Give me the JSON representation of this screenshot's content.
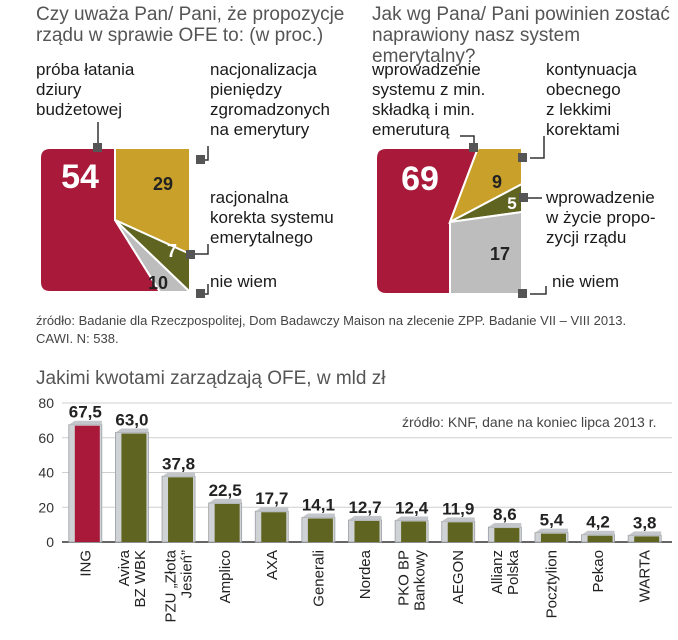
{
  "colors": {
    "red": "#a8193a",
    "gold": "#c9a12a",
    "olive": "#5f6520",
    "gray": "#bdbdbd",
    "bar_face": "#d0d3d6",
    "bar_top": "#c3c6ca"
  },
  "chart_data": [
    {
      "type": "pie",
      "title": "Czy uważa Pan/ Pani, że propozycje rządu w sprawie OFE to: (w proc.)",
      "slices": [
        {
          "label": "próba łatania dziury budżetowej",
          "value": 54
        },
        {
          "label": "nacjonalizacja pieniędzy zgromadzonych na emerytury",
          "value": 29
        },
        {
          "label": "racjonalna korekta systemu emerytalnego",
          "value": 7
        },
        {
          "label": "nie wiem",
          "value": 10
        }
      ]
    },
    {
      "type": "pie",
      "title": "Jak wg Pana/ Pani powinien zostać naprawiony nasz system emerytalny?",
      "slices": [
        {
          "label": "wprowadzenie systemu z min. składką i min. emeruturą",
          "value": 69
        },
        {
          "label": "kontynuacja obecnego z lekkimi korektami",
          "value": 9
        },
        {
          "label": "wprowadzenie w życie propozycji rządu",
          "value": 5
        },
        {
          "label": "nie wiem",
          "value": 17
        }
      ]
    },
    {
      "type": "bar",
      "title": "Jakimi kwotami zarządzają OFE, w mld zł",
      "source": "źródło: KNF, dane na koniec lipca 2013 r.",
      "categories": [
        "ING",
        "Aviva BZ WBK",
        "PZU „Złota Jesień”",
        "Amplico",
        "AXA",
        "Generali",
        "Nordea",
        "PKO BP Bankowy",
        "AEGON",
        "Allianz Polska",
        "Pocztylion",
        "Pekao",
        "WARTA"
      ],
      "category_lines": [
        [
          "ING"
        ],
        [
          "Aviva",
          "BZ WBK"
        ],
        [
          "PZU „Złota",
          "Jesień”"
        ],
        [
          "Amplico"
        ],
        [
          "AXA"
        ],
        [
          "Generali"
        ],
        [
          "Nordea"
        ],
        [
          "PKO BP",
          "Bankowy"
        ],
        [
          "AEGON"
        ],
        [
          "Allianz",
          "Polska"
        ],
        [
          "Pocztylion"
        ],
        [
          "Pekao"
        ],
        [
          "WARTA"
        ]
      ],
      "values": [
        67.5,
        63.0,
        37.8,
        22.5,
        17.7,
        14.1,
        12.7,
        12.4,
        11.9,
        8.6,
        5.4,
        4.2,
        3.8
      ],
      "value_labels": [
        "67,5",
        "63,0",
        "37,8",
        "22,5",
        "17,7",
        "14,1",
        "12,7",
        "12,4",
        "11,9",
        "8,6",
        "5,4",
        "4,2",
        "3,8"
      ],
      "bar_colors": [
        "red",
        "olive",
        "olive",
        "olive",
        "olive",
        "olive",
        "olive",
        "olive",
        "olive",
        "olive",
        "olive",
        "olive",
        "olive"
      ],
      "yticks": [
        0,
        20,
        40,
        60,
        80
      ],
      "ylim": [
        0,
        80
      ]
    }
  ],
  "pie1": {
    "title_line1": "Czy uważa Pan/ Pani, że propozycje",
    "title_line2": "rządu w sprawie OFE to: (w proc.)",
    "labels": {
      "s1": [
        "próba łatania",
        "dziury",
        "budżetowej"
      ],
      "s2": [
        "nacjonalizacja",
        "pieniędzy",
        "zgromadzonych",
        "na emerytury"
      ],
      "s3": [
        "racjonalna",
        "korekta systemu",
        "emerytalnego"
      ],
      "s4": [
        "nie wiem"
      ]
    },
    "values": [
      "54",
      "29",
      "7",
      "10"
    ]
  },
  "pie2": {
    "title_line1": "Jak wg Pana/ Pani powinien zostać",
    "title_line2": "naprawiony nasz system emerytalny?",
    "labels": {
      "s1": [
        "wprowadzenie",
        "systemu z min.",
        "składką i min.",
        "emeruturą"
      ],
      "s2": [
        "kontynuacja",
        "obecnego",
        "z lekkimi",
        "korektami"
      ],
      "s3": [
        "wprowadzenie",
        "w życie propo-",
        "zycji rządu"
      ],
      "s4": [
        "nie wiem"
      ]
    },
    "values": [
      "69",
      "9",
      "5",
      "17"
    ]
  },
  "survey_source_line1": "źródło: Badanie dla Rzeczpospolitej, Dom Badawczy Maison na zlecenie ZPP. Badanie VII – VIII 2013.",
  "survey_source_line2": "CAWI. N: 538."
}
